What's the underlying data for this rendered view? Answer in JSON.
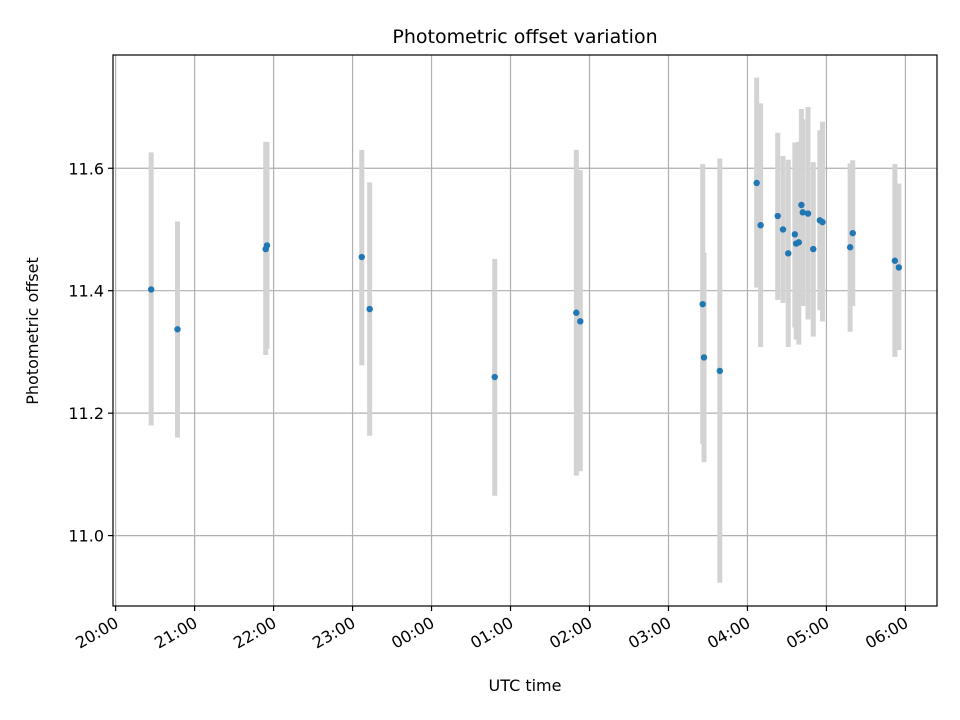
{
  "chart_data": {
    "type": "scatter",
    "title": "Photometric offset variation",
    "xlabel": "UTC time",
    "ylabel": "Photometric offset",
    "xlim": [
      "19:58",
      "06:24"
    ],
    "ylim": [
      10.885,
      11.785
    ],
    "grid": true,
    "x_ticks": [
      "20:00",
      "21:00",
      "22:00",
      "23:00",
      "00:00",
      "01:00",
      "02:00",
      "03:00",
      "04:00",
      "05:00",
      "06:00"
    ],
    "y_ticks": [
      "11.0",
      "11.2",
      "11.4",
      "11.6"
    ],
    "y_tick_values": [
      11.0,
      11.2,
      11.4,
      11.6
    ],
    "colors": {
      "point": "#1f77b4",
      "error_bar": "#d3d3d3",
      "grid": "#b0b0b0"
    },
    "points": [
      {
        "x": "20:27",
        "y": 11.402,
        "ylow": 11.18,
        "yhigh": 11.626
      },
      {
        "x": "20:47",
        "y": 11.337,
        "ylow": 11.16,
        "yhigh": 11.513
      },
      {
        "x": "21:54",
        "y": 11.468,
        "ylow": 11.295,
        "yhigh": 11.643
      },
      {
        "x": "21:55",
        "y": 11.474,
        "ylow": 11.305,
        "yhigh": 11.643
      },
      {
        "x": "23:07",
        "y": 11.455,
        "ylow": 11.278,
        "yhigh": 11.63
      },
      {
        "x": "23:13",
        "y": 11.37,
        "ylow": 11.163,
        "yhigh": 11.577
      },
      {
        "x": "00:48",
        "y": 11.259,
        "ylow": 11.065,
        "yhigh": 11.452
      },
      {
        "x": "01:50",
        "y": 11.364,
        "ylow": 11.098,
        "yhigh": 11.63
      },
      {
        "x": "01:53",
        "y": 11.35,
        "ylow": 11.105,
        "yhigh": 11.597
      },
      {
        "x": "03:26",
        "y": 11.378,
        "ylow": 11.15,
        "yhigh": 11.607
      },
      {
        "x": "03:27",
        "y": 11.291,
        "ylow": 11.12,
        "yhigh": 11.462
      },
      {
        "x": "03:39",
        "y": 11.269,
        "ylow": 10.923,
        "yhigh": 11.616
      },
      {
        "x": "04:07",
        "y": 11.576,
        "ylow": 11.405,
        "yhigh": 11.748
      },
      {
        "x": "04:10",
        "y": 11.507,
        "ylow": 11.308,
        "yhigh": 11.706
      },
      {
        "x": "04:23",
        "y": 11.522,
        "ylow": 11.385,
        "yhigh": 11.658
      },
      {
        "x": "04:27",
        "y": 11.5,
        "ylow": 11.38,
        "yhigh": 11.62
      },
      {
        "x": "04:31",
        "y": 11.461,
        "ylow": 11.308,
        "yhigh": 11.614
      },
      {
        "x": "04:36",
        "y": 11.492,
        "ylow": 11.34,
        "yhigh": 11.642
      },
      {
        "x": "04:37",
        "y": 11.477,
        "ylow": 11.32,
        "yhigh": 11.635
      },
      {
        "x": "04:39",
        "y": 11.479,
        "ylow": 11.312,
        "yhigh": 11.643
      },
      {
        "x": "04:41",
        "y": 11.54,
        "ylow": 11.38,
        "yhigh": 11.697
      },
      {
        "x": "04:42",
        "y": 11.528,
        "ylow": 11.375,
        "yhigh": 11.68
      },
      {
        "x": "04:46",
        "y": 11.526,
        "ylow": 11.353,
        "yhigh": 11.7
      },
      {
        "x": "04:50",
        "y": 11.468,
        "ylow": 11.325,
        "yhigh": 11.61
      },
      {
        "x": "04:55",
        "y": 11.515,
        "ylow": 11.368,
        "yhigh": 11.662
      },
      {
        "x": "04:57",
        "y": 11.512,
        "ylow": 11.35,
        "yhigh": 11.676
      },
      {
        "x": "05:18",
        "y": 11.471,
        "ylow": 11.333,
        "yhigh": 11.608
      },
      {
        "x": "05:20",
        "y": 11.494,
        "ylow": 11.375,
        "yhigh": 11.613
      },
      {
        "x": "05:52",
        "y": 11.449,
        "ylow": 11.292,
        "yhigh": 11.607
      },
      {
        "x": "05:55",
        "y": 11.438,
        "ylow": 11.303,
        "yhigh": 11.575
      }
    ]
  }
}
